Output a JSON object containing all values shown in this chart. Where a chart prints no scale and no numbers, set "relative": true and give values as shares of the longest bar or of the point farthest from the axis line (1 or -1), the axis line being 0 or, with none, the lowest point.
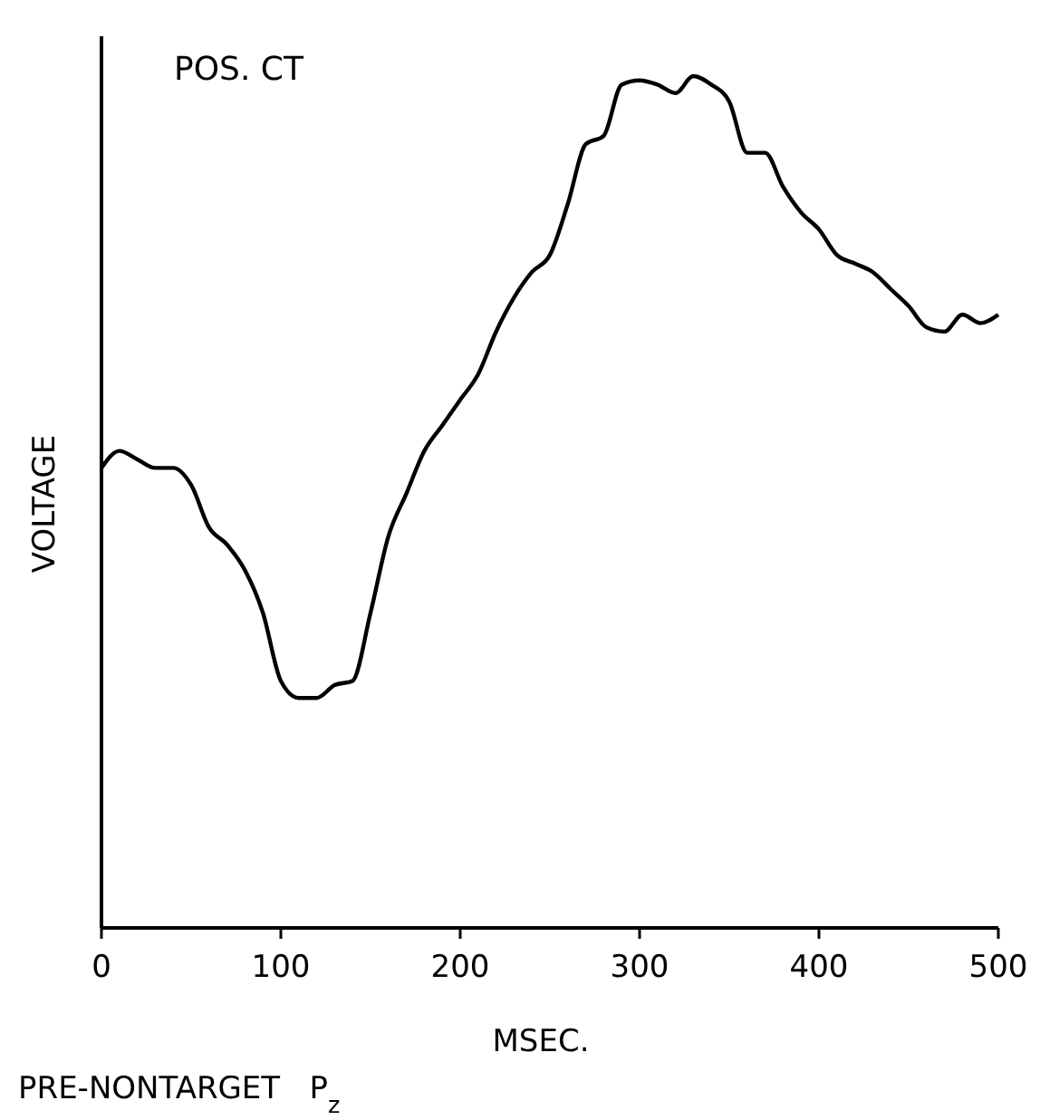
{
  "chart_data": {
    "type": "line",
    "title": "POS. CT",
    "xlabel": "MSEC.",
    "ylabel": "VOLTAGE",
    "annotations": [
      "PRE-NONTARGET   P$_{z}$"
    ],
    "relative": true,
    "xlim": [
      0,
      500
    ],
    "xticks": [
      0,
      100,
      200,
      300,
      400,
      500
    ],
    "grid": false,
    "marker": "none",
    "line_style": "solid",
    "x": [
      0,
      10,
      20,
      30,
      40,
      50,
      60,
      70,
      80,
      90,
      100,
      110,
      120,
      130,
      140,
      150,
      160,
      170,
      180,
      190,
      200,
      210,
      220,
      230,
      240,
      250,
      260,
      270,
      280,
      290,
      300,
      310,
      320,
      330,
      340,
      350,
      360,
      370,
      380,
      390,
      400,
      410,
      420,
      430,
      440,
      450,
      460,
      470,
      480,
      490,
      500
    ],
    "series": [
      {
        "color": "#000000",
        "values": [
          0.54,
          0.56,
          0.55,
          0.54,
          0.54,
          0.52,
          0.47,
          0.45,
          0.42,
          0.37,
          0.29,
          0.27,
          0.27,
          0.285,
          0.29,
          0.37,
          0.46,
          0.51,
          0.56,
          0.59,
          0.62,
          0.65,
          0.7,
          0.74,
          0.77,
          0.79,
          0.85,
          0.92,
          0.93,
          0.99,
          0.995,
          0.99,
          0.98,
          1.0,
          0.99,
          0.97,
          0.91,
          0.91,
          0.87,
          0.84,
          0.82,
          0.79,
          0.78,
          0.77,
          0.75,
          0.73,
          0.705,
          0.7,
          0.72,
          0.71,
          0.72
        ]
      }
    ]
  }
}
